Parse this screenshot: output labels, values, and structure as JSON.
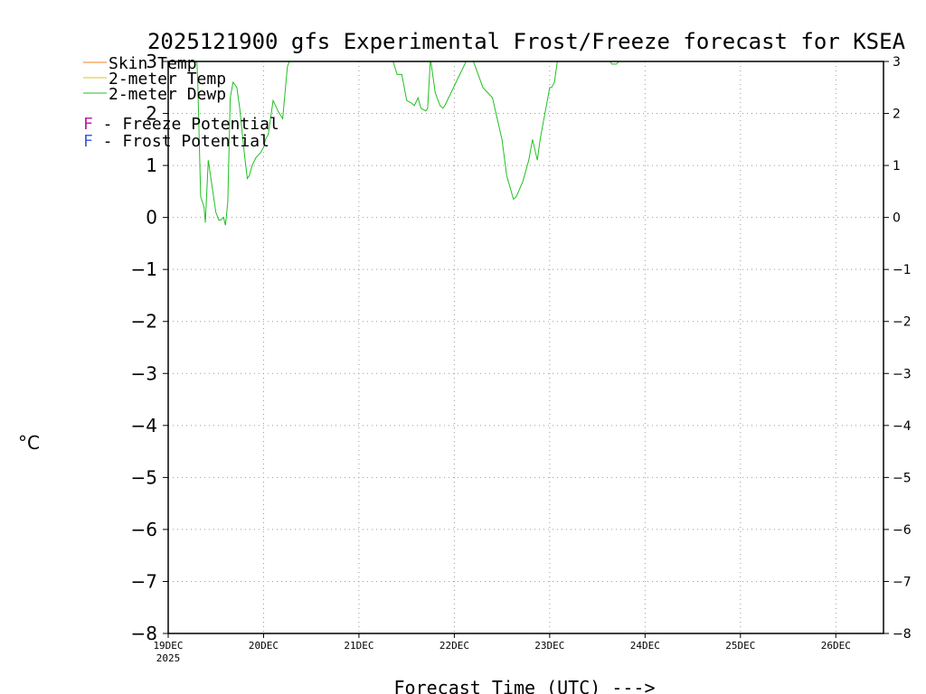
{
  "chart_data": {
    "type": "line",
    "title": "2025121900 gfs Experimental Frost/Freeze forecast for KSEA",
    "xlabel": "Forecast Time (UTC) --->",
    "ylabel": "°C",
    "ylim": [
      -8,
      3
    ],
    "xlim_days": [
      0,
      7.5
    ],
    "grid": true,
    "y_ticks": [
      3,
      2,
      1,
      0,
      -1,
      -2,
      -3,
      -4,
      -5,
      -6,
      -7,
      -8
    ],
    "y_tick_labels": [
      "3",
      "2",
      "1",
      "0",
      "−1",
      "−2",
      "−3",
      "−4",
      "−5",
      "−6",
      "−7",
      "−8"
    ],
    "x_ticks": [
      0,
      1,
      2,
      3,
      4,
      5,
      6,
      7
    ],
    "x_tick_labels": [
      "19DEC",
      "20DEC",
      "21DEC",
      "22DEC",
      "23DEC",
      "24DEC",
      "25DEC",
      "26DEC"
    ],
    "x_year_label": "2025",
    "legend": [
      {
        "label": "Skin Temp",
        "color": "#f08020"
      },
      {
        "label": "2-meter Temp",
        "color": "#e0c020"
      },
      {
        "label": "2-meter Dewp",
        "color": "#20c020"
      }
    ],
    "potential_legend": [
      {
        "letter": "F",
        "label": " - Freeze Potential",
        "color": "#c020a0"
      },
      {
        "letter": "F",
        "label": " - Frost Potential",
        "color": "#4060e0"
      }
    ],
    "series": [
      {
        "name": "2-meter Dewp",
        "color": "#20c020",
        "x": [
          0.2,
          0.3,
          0.31,
          0.34,
          0.375,
          0.39,
          0.42,
          0.46,
          0.5,
          0.53,
          0.55,
          0.58,
          0.6,
          0.625,
          0.65,
          0.68,
          0.72,
          0.75,
          0.8,
          0.83,
          0.85,
          0.88,
          0.92,
          0.97,
          1.0,
          1.02,
          1.05,
          1.1,
          1.15,
          1.2,
          1.25,
          1.27,
          1.32,
          1.36,
          1.4,
          1.45,
          1.5,
          1.55,
          2.35,
          2.4,
          2.45,
          2.5,
          2.55,
          2.58,
          2.62,
          2.65,
          2.7,
          2.72,
          2.75,
          2.8,
          2.85,
          2.88,
          2.9,
          3.15,
          3.2,
          3.3,
          3.35,
          3.4,
          3.5,
          3.55,
          3.62,
          3.65,
          3.72,
          3.78,
          3.82,
          3.87,
          3.9,
          4.0,
          4.02,
          4.05,
          4.08,
          4.15,
          4.62,
          4.65,
          4.7,
          4.75
        ],
        "values": [
          3.2,
          3.05,
          2.6,
          0.4,
          0.2,
          -0.1,
          1.1,
          0.6,
          0.1,
          -0.05,
          -0.05,
          0.0,
          -0.15,
          0.3,
          2.3,
          2.6,
          2.5,
          2.1,
          1.2,
          0.75,
          0.8,
          1.0,
          1.15,
          1.25,
          1.35,
          1.5,
          1.6,
          2.25,
          2.05,
          1.9,
          2.9,
          3.0,
          3.0,
          3.0,
          3.05,
          3.1,
          3.15,
          3.1,
          3.05,
          2.75,
          2.75,
          2.25,
          2.2,
          2.15,
          2.3,
          2.1,
          2.05,
          2.1,
          3.05,
          2.4,
          2.15,
          2.1,
          2.15,
          3.1,
          3.0,
          2.5,
          2.4,
          2.3,
          1.5,
          0.8,
          0.35,
          0.4,
          0.7,
          1.1,
          1.5,
          1.1,
          1.5,
          2.5,
          2.5,
          2.6,
          3.0,
          3.1,
          3.05,
          2.95,
          2.95,
          3.05
        ]
      }
    ]
  }
}
